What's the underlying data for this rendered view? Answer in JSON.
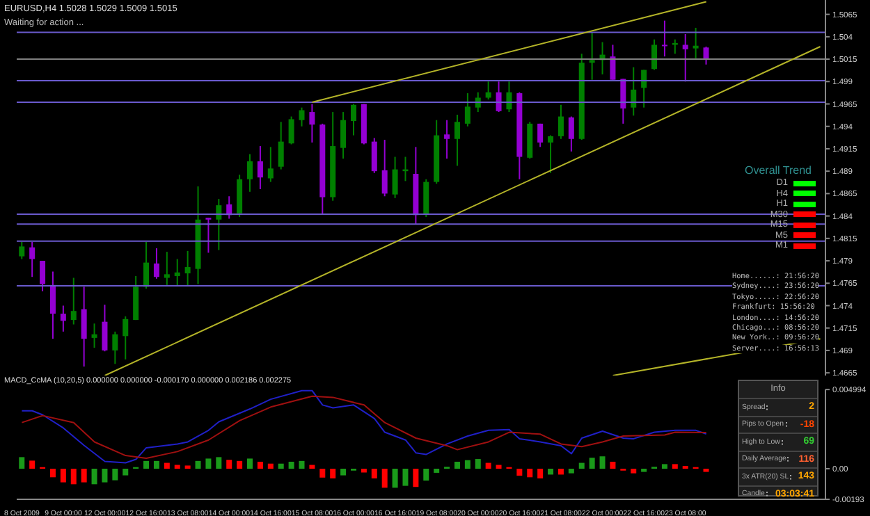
{
  "chart_data": [
    {
      "type": "candlestick",
      "title": "EURUSD,H4  1.5028 1.5029 1.5009 1.5015",
      "annotations": [
        "Waiting for action ...",
        "Home......: 21:56:20",
        "Sydney....: 23:56:20",
        "Tokyo.....: 22:56:20",
        "Frankfurt: 15:56:20",
        "London....: 14:56:20",
        "Chicago...: 08:56:20",
        "New York..: 09:56:20",
        "Server....: 16:56:13"
      ],
      "categories": [
        null,
        null,
        null,
        null,
        null,
        null,
        null,
        null,
        null,
        null,
        null,
        null,
        null,
        null,
        null,
        null,
        null,
        null,
        null,
        null,
        null,
        null,
        null,
        null,
        null,
        null,
        null,
        null,
        null,
        null,
        null,
        null,
        null,
        null,
        null,
        null,
        null,
        null,
        null,
        null,
        null,
        null,
        null,
        null,
        null,
        null,
        null,
        null,
        null,
        null,
        null,
        null,
        null,
        null,
        null,
        null,
        null,
        null,
        null,
        null,
        null,
        null,
        null,
        null,
        null,
        null,
        null,
        null,
        null,
        null,
        null,
        null,
        null,
        null,
        null,
        null,
        null,
        null
      ],
      "ohlc": [
        [
          1.4795,
          1.4811,
          1.4792,
          1.4806
        ],
        [
          1.4805,
          1.4811,
          1.4772,
          1.4792
        ],
        [
          1.479,
          1.479,
          1.4756,
          1.4764
        ],
        [
          1.4763,
          1.4778,
          1.4703,
          1.4731
        ],
        [
          1.4731,
          1.474,
          1.4711,
          1.4723
        ],
        [
          1.4724,
          1.4771,
          1.4719,
          1.4734
        ],
        [
          1.4736,
          1.4761,
          1.4672,
          1.4703
        ],
        [
          1.4704,
          1.472,
          1.4693,
          1.4708
        ],
        [
          1.4722,
          1.4741,
          1.4689,
          1.469
        ],
        [
          1.469,
          1.4711,
          1.4675,
          1.4708
        ],
        [
          1.4706,
          1.4728,
          1.468,
          1.4725
        ],
        [
          1.4724,
          1.4773,
          1.4724,
          1.4761
        ],
        [
          1.4761,
          1.4811,
          1.4759,
          1.4788
        ],
        [
          1.4787,
          1.4804,
          1.477,
          1.4772
        ],
        [
          1.4771,
          1.48,
          1.4763,
          1.4775
        ],
        [
          1.4773,
          1.4792,
          1.4762,
          1.4777
        ],
        [
          1.4776,
          1.4801,
          1.4762,
          1.4783
        ],
        [
          1.4781,
          1.4873,
          1.4764,
          1.4836
        ],
        [
          1.4838,
          1.4838,
          1.4799,
          1.4836
        ],
        [
          1.4836,
          1.4859,
          1.4802,
          1.4852
        ],
        [
          1.4853,
          1.4862,
          1.4837,
          1.4841
        ],
        [
          1.4843,
          1.4886,
          1.4839,
          1.4881
        ],
        [
          1.4881,
          1.4909,
          1.4867,
          1.4901
        ],
        [
          1.4901,
          1.4918,
          1.487,
          1.4883
        ],
        [
          1.4882,
          1.4917,
          1.4878,
          1.4893
        ],
        [
          1.4895,
          1.4945,
          1.4892,
          1.4923
        ],
        [
          1.4921,
          1.4951,
          1.492,
          1.4948
        ],
        [
          1.4947,
          1.4961,
          1.494,
          1.4958
        ],
        [
          1.4956,
          1.4965,
          1.4922,
          1.4942
        ],
        [
          1.4942,
          1.4943,
          1.4842,
          1.4861
        ],
        [
          1.4861,
          1.4956,
          1.4857,
          1.4918
        ],
        [
          1.4916,
          1.4956,
          1.4904,
          1.4947
        ],
        [
          1.4946,
          1.4965,
          1.493,
          1.4964
        ],
        [
          1.4965,
          1.4965,
          1.492,
          1.4921
        ],
        [
          1.4923,
          1.4927,
          1.4888,
          1.489
        ],
        [
          1.4891,
          1.4925,
          1.4862,
          1.4865
        ],
        [
          1.4864,
          1.4906,
          1.486,
          1.4892
        ],
        [
          1.489,
          1.4906,
          1.4879,
          1.4892
        ],
        [
          1.4887,
          1.4917,
          1.4831,
          1.4841
        ],
        [
          1.4842,
          1.4881,
          1.4839,
          1.4878
        ],
        [
          1.4878,
          1.4947,
          1.4876,
          1.493
        ],
        [
          1.4931,
          1.4947,
          1.4904,
          1.4926
        ],
        [
          1.4926,
          1.4953,
          1.4896,
          1.4945
        ],
        [
          1.4943,
          1.4977,
          1.494,
          1.4962
        ],
        [
          1.4961,
          1.4978,
          1.4956,
          1.4972
        ],
        [
          1.4972,
          1.499,
          1.497,
          1.4978
        ],
        [
          1.4978,
          1.499,
          1.4956,
          1.4957
        ],
        [
          1.4959,
          1.499,
          1.4956,
          1.4978
        ],
        [
          1.4977,
          1.4978,
          1.4881,
          1.4906
        ],
        [
          1.4905,
          1.4945,
          1.4904,
          1.4943
        ],
        [
          1.4943,
          1.4943,
          1.4917,
          1.4922
        ],
        [
          1.4922,
          1.493,
          1.4888,
          1.4929
        ],
        [
          1.4929,
          1.4964,
          1.4926,
          1.4951
        ],
        [
          1.495,
          1.4951,
          1.4912,
          1.4926
        ],
        [
          1.4926,
          1.5021,
          1.4925,
          1.5011
        ],
        [
          1.5011,
          1.5045,
          1.4992,
          1.5014
        ],
        [
          1.5014,
          1.5034,
          1.4998,
          1.502
        ],
        [
          1.5018,
          1.5031,
          1.4992,
          1.4992
        ],
        [
          1.4993,
          1.4993,
          1.4943,
          1.496
        ],
        [
          1.4961,
          1.5006,
          1.4952,
          1.4981
        ],
        [
          1.4983,
          1.5003,
          1.4961,
          1.5003
        ],
        [
          1.5004,
          1.5037,
          1.5003,
          1.5031
        ],
        [
          1.5031,
          1.5058,
          1.5018,
          1.503
        ],
        [
          1.5031,
          1.5037,
          1.5021,
          1.5033
        ],
        [
          1.5031,
          1.5043,
          1.499,
          1.5026
        ],
        [
          1.5027,
          1.505,
          1.5016,
          1.503
        ],
        [
          1.5028,
          1.5029,
          1.5009,
          1.5015
        ],
        null,
        null,
        null,
        null,
        null,
        null,
        null,
        null,
        null,
        null,
        null
      ],
      "colors": [
        "#008000",
        "#9400d3",
        "#9400d3",
        "#9400d3",
        "#9400d3",
        "#008000",
        "#9400d3",
        "#008000",
        "#9400d3",
        "#008000",
        "#008000",
        "#008000",
        "#008000",
        "#9400d3",
        "#008000",
        "#008000",
        "#008000",
        "#008000",
        "#9400d3",
        "#008000",
        "#9400d3",
        "#008000",
        "#008000",
        "#9400d3",
        "#008000",
        "#008000",
        "#008000",
        "#008000",
        "#9400d3",
        "#9400d3",
        "#008000",
        "#008000",
        "#008000",
        "#9400d3",
        "#9400d3",
        "#9400d3",
        "#008000",
        "#008000",
        "#9400d3",
        "#008000",
        "#008000",
        "#9400d3",
        "#008000",
        "#008000",
        "#008000",
        "#008000",
        "#9400d3",
        "#008000",
        "#9400d3",
        "#008000",
        "#9400d3",
        "#008000",
        "#008000",
        "#9400d3",
        "#008000",
        "#008000",
        "#008000",
        "#9400d3",
        "#9400d3",
        "#008000",
        "#008000",
        "#008000",
        "#9400d3",
        "#008000",
        "#9400d3",
        "#008000",
        "#9400d3",
        null,
        null,
        null,
        null,
        null,
        null,
        null,
        null,
        null,
        null,
        null
      ],
      "series": [
        {
          "type": "line",
          "color": "#b4b428",
          "values": [
            null,
            null,
            null,
            null,
            null,
            null,
            null,
            null,
            null,
            null,
            null,
            null,
            null,
            null,
            null,
            null,
            null,
            null,
            null,
            null,
            null,
            null,
            null,
            null,
            null,
            null,
            null,
            null,
            1.4967,
            null,
            null,
            null,
            null,
            null,
            null,
            null,
            null,
            null,
            null,
            null,
            null,
            null,
            null,
            null,
            null,
            null,
            null,
            null,
            null,
            null,
            null,
            null,
            null,
            null,
            null,
            null,
            null,
            null,
            null,
            null,
            null,
            null,
            null,
            null,
            null,
            null,
            1.5079,
            null,
            null,
            null,
            null,
            null,
            null,
            null,
            null,
            null,
            null,
            null
          ]
        },
        {
          "type": "line",
          "color": "#b4b428",
          "values": [
            null,
            null,
            null,
            null,
            null,
            null,
            null,
            null,
            1.4662,
            null,
            null,
            null,
            null,
            null,
            null,
            null,
            null,
            null,
            null,
            null,
            null,
            null,
            null,
            null,
            null,
            null,
            null,
            null,
            null,
            null,
            null,
            null,
            null,
            null,
            null,
            null,
            null,
            null,
            null,
            null,
            null,
            null,
            null,
            null,
            null,
            null,
            null,
            null,
            null,
            null,
            null,
            null,
            null,
            null,
            null,
            null,
            null,
            null,
            null,
            null,
            null,
            null,
            null,
            null,
            null,
            null,
            null,
            null,
            null,
            null,
            null,
            null,
            null,
            null,
            null,
            null,
            null,
            1.5029
          ]
        },
        {
          "type": "line",
          "color": "#b4b428",
          "values": [
            null,
            null,
            null,
            null,
            null,
            null,
            null,
            null,
            null,
            null,
            null,
            null,
            null,
            null,
            null,
            null,
            null,
            null,
            null,
            null,
            null,
            null,
            null,
            null,
            null,
            null,
            null,
            null,
            null,
            null,
            null,
            null,
            null,
            null,
            null,
            null,
            null,
            null,
            null,
            null,
            null,
            null,
            null,
            null,
            null,
            null,
            null,
            null,
            null,
            null,
            null,
            null,
            null,
            null,
            null,
            null,
            null,
            1.4662,
            null,
            null,
            null,
            null,
            null,
            null,
            null,
            null,
            null,
            null,
            null,
            null,
            null,
            null,
            null,
            null,
            null,
            null,
            null,
            1.4703
          ]
        }
      ],
      "ref_lines": [
        {
          "axis": "y",
          "value": 1.5045,
          "color": "#6a5acd"
        },
        {
          "axis": "y",
          "value": 1.5015,
          "color": "#808080"
        },
        {
          "axis": "y",
          "value": 1.4991,
          "color": "#6a5acd"
        },
        {
          "axis": "y",
          "value": 1.4967,
          "color": "#6a5acd"
        },
        {
          "axis": "y",
          "value": 1.4842,
          "color": "#6a5acd"
        },
        {
          "axis": "y",
          "value": 1.4831,
          "color": "#6a5acd"
        },
        {
          "axis": "y",
          "value": 1.4812,
          "color": "#6a5acd"
        },
        {
          "axis": "y",
          "value": 1.4762,
          "color": "#6a5acd"
        }
      ],
      "ylim": [
        1.4662,
        1.5081
      ],
      "yticks": [
        1.4665,
        1.469,
        1.4715,
        1.474,
        1.4765,
        1.479,
        1.4815,
        1.484,
        1.4865,
        1.489,
        1.4915,
        1.494,
        1.4965,
        1.499,
        1.5015,
        1.504,
        1.5065
      ],
      "tick_labels": "y"
    },
    {
      "type": "bar",
      "title": "MACD_CcMA (10,20,5) 0.000000 0.000000 -0.000170 0.000000 0.002186 0.002275",
      "categories": [
        "8 Oct 2009",
        null,
        null,
        null,
        "9 Oct 00:00",
        null,
        null,
        null,
        "12 Oct 00:00",
        null,
        null,
        null,
        "12 Oct 16:00",
        null,
        null,
        null,
        "13 Oct 08:00",
        null,
        null,
        null,
        "14 Oct 00:00",
        null,
        null,
        null,
        "14 Oct 16:00",
        null,
        null,
        null,
        "15 Oct 08:00",
        null,
        null,
        null,
        "16 Oct 00:00",
        null,
        null,
        null,
        "16 Oct 16:00",
        null,
        null,
        null,
        "19 Oct 08:00",
        null,
        null,
        null,
        "20 Oct 00:00",
        null,
        null,
        null,
        "20 Oct 16:00",
        null,
        null,
        null,
        "21 Oct 08:00",
        null,
        null,
        null,
        "22 Oct 00:00",
        null,
        null,
        null,
        "22 Oct 16:00",
        null,
        null,
        null,
        "23 Oct 08:00",
        null,
        null,
        null,
        null,
        null,
        null,
        null,
        null,
        null,
        null,
        null,
        null,
        null
      ],
      "series": [
        {
          "type": "bar",
          "values": [
            0.00073,
            0.00051,
            0.0001,
            -0.00054,
            -0.00086,
            -0.00098,
            -0.00086,
            -0.00098,
            -0.00086,
            -0.00073,
            -0.00042,
            0.0001,
            0.00049,
            0.00049,
            0.00037,
            0.00024,
            0.0002,
            0.00049,
            0.00064,
            0.00073,
            0.00056,
            0.00049,
            0.00064,
            0.00044,
            0.00032,
            0.00032,
            0.00044,
            0.00049,
            0.00024,
            -0.00056,
            -0.00061,
            -0.00042,
            -0.00012,
            -0.00024,
            -0.00061,
            -0.0012,
            -0.0012,
            -0.00108,
            -0.00115,
            -0.00075,
            -0.00026,
            0.00012,
            0.00044,
            0.00054,
            0.00061,
            0.00037,
            0.00024,
            0.0001,
            -0.00044,
            -0.00054,
            -0.00061,
            -0.00037,
            -0.00037,
            -0.00029,
            0.00037,
            0.00069,
            0.00078,
            0.00044,
            -0.00012,
            -0.00029,
            -0.0002,
            0.00012,
            0.00029,
            0.00029,
            0.00017,
            0.0001,
            -0.0002,
            null,
            null,
            null,
            null,
            null,
            null,
            null,
            null,
            null,
            null,
            null
          ],
          "colors": [
            "#1a9a1a",
            "#ff0000",
            "#ff0000",
            "#ff0000",
            "#ff0000",
            "#ff0000",
            "#ff0000",
            "#1a9a1a",
            "#1a9a1a",
            "#1a9a1a",
            "#1a9a1a",
            "#1a9a1a",
            "#1a9a1a",
            "#1a9a1a",
            "#ff0000",
            "#ff0000",
            "#ff0000",
            "#1a9a1a",
            "#1a9a1a",
            "#1a9a1a",
            "#ff0000",
            "#ff0000",
            "#1a9a1a",
            "#ff0000",
            "#ff0000",
            "#1a9a1a",
            "#1a9a1a",
            "#1a9a1a",
            "#ff0000",
            "#ff0000",
            "#ff0000",
            "#1a9a1a",
            "#1a9a1a",
            "#ff0000",
            "#ff0000",
            "#ff0000",
            "#1a9a1a",
            "#1a9a1a",
            "#ff0000",
            "#1a9a1a",
            "#1a9a1a",
            "#1a9a1a",
            "#1a9a1a",
            "#1a9a1a",
            "#1a9a1a",
            "#ff0000",
            "#ff0000",
            "#ff0000",
            "#ff0000",
            "#ff0000",
            "#ff0000",
            "#1a9a1a",
            "#ff0000",
            "#1a9a1a",
            "#1a9a1a",
            "#1a9a1a",
            "#1a9a1a",
            "#ff0000",
            "#ff0000",
            "#ff0000",
            "#1a9a1a",
            "#1a9a1a",
            "#1a9a1a",
            "#ff0000",
            "#ff0000",
            "#ff0000",
            "#ff0000",
            null,
            null,
            null,
            null,
            null,
            null,
            null,
            null,
            null,
            null,
            null
          ]
        },
        {
          "type": "line",
          "color": "#2020c8",
          "values": [
            0.00365,
            0.00365,
            0.0034,
            null,
            0.00257,
            null,
            0.00147,
            null,
            0.00046,
            null,
            0.00037,
            0.00059,
            0.00132,
            null,
            null,
            0.00156,
            0.00169,
            null,
            0.00242,
            0.00296,
            null,
            null,
            0.00377,
            null,
            0.00438,
            null,
            null,
            0.00492,
            0.00492,
            0.00402,
            0.00384,
            null,
            0.00402,
            null,
            0.00316,
            0.0023,
            null,
            0.00181,
            0.001,
            0.0009,
            null,
            0.00156,
            null,
            0.00206,
            null,
            0.00242,
            null,
            0.00247,
            0.00189,
            null,
            0.00169,
            null,
            0.00145,
            0.00095,
            0.00193,
            null,
            0.00237,
            null,
            0.00193,
            0.00189,
            null,
            0.0023,
            null,
            0.00242,
            null,
            0.00242,
            0.00219,
            null,
            null,
            null,
            null,
            null,
            null,
            null,
            null,
            null,
            null,
            null
          ]
        },
        {
          "type": "line",
          "color": "#a01010",
          "values": [
            0.00291,
            null,
            0.00335,
            null,
            null,
            0.00291,
            null,
            0.00169,
            null,
            null,
            0.00083,
            null,
            0.00066,
            null,
            null,
            0.00108,
            null,
            null,
            0.00181,
            null,
            null,
            0.00303,
            null,
            null,
            0.00389,
            null,
            null,
            null,
            0.00457,
            null,
            0.0045,
            null,
            null,
            0.00402,
            null,
            0.00291,
            null,
            null,
            0.00193,
            null,
            null,
            0.00145,
            0.0012,
            null,
            null,
            0.00169,
            null,
            0.0023,
            null,
            null,
            0.00218,
            null,
            0.00156,
            null,
            0.00139,
            null,
            0.00169,
            null,
            0.00206,
            null,
            null,
            null,
            0.00213,
            0.0023,
            null,
            null,
            0.00228,
            null,
            null,
            null,
            null,
            null,
            null,
            null,
            null,
            null,
            null,
            null
          ]
        }
      ],
      "ylim": [
        -0.00193,
        0.005
      ],
      "yticks": [
        -0.00193,
        {
          "value": 0,
          "label": "0.00"
        },
        0.004994
      ]
    },
    {
      "type": "other",
      "title": "Overall Trend",
      "categories": [
        "D1",
        "H4",
        "H1",
        "M30",
        "M15",
        "M5",
        "M1"
      ],
      "colors": [
        "#00ff00",
        "#00ff00",
        "#00ff00",
        "#ff0000",
        "#ff0000",
        "#ff0000",
        "#ff0000"
      ]
    },
    {
      "type": "other",
      "title": "Info",
      "categories": [
        "Spread",
        "Pips to Open",
        "High to Low",
        "Daily Average",
        "3x ATR(20) SL",
        "Candle"
      ],
      "value_labels": [
        "2",
        "-18",
        "69",
        "116",
        "143",
        "03:03:41"
      ],
      "colors": [
        "#ffa500",
        "#ff4500",
        "#32cd32",
        "#ff6030",
        "#ffa500",
        "#ffa500"
      ]
    }
  ]
}
